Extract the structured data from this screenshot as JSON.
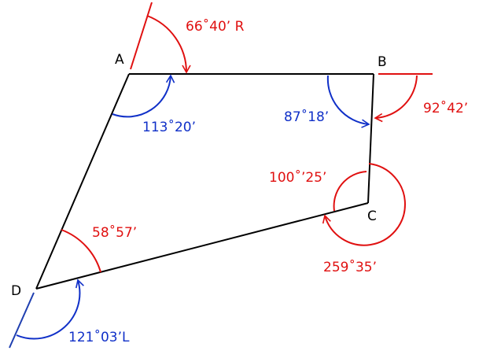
{
  "vertices": {
    "a": "A",
    "b": "B",
    "c": "C",
    "d": "D"
  },
  "angles": {
    "a_bearing": "66˚40’ R",
    "a_interior": "113˚20’",
    "b_interior": "87˚18’",
    "b_deflection": "92˚42’",
    "c_interior": "100˚’25’",
    "c_exterior": "259˚35’",
    "d_interior": "58˚57’",
    "d_deflection": "121˚03’L"
  },
  "colors": {
    "edge": "#000000",
    "red": "#e01010",
    "blue": "#1030c8"
  }
}
